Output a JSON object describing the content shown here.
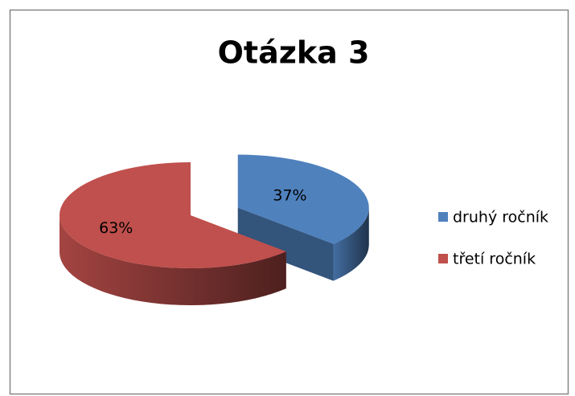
{
  "chart_data": {
    "type": "pie",
    "title": "Otázka 3",
    "categories": [
      "druhý ročník",
      "třetí ročník"
    ],
    "values": [
      37,
      63
    ],
    "value_labels": [
      "37%",
      "63%"
    ],
    "colors": [
      "#4f81bd",
      "#c0504d"
    ],
    "legend": "right"
  }
}
